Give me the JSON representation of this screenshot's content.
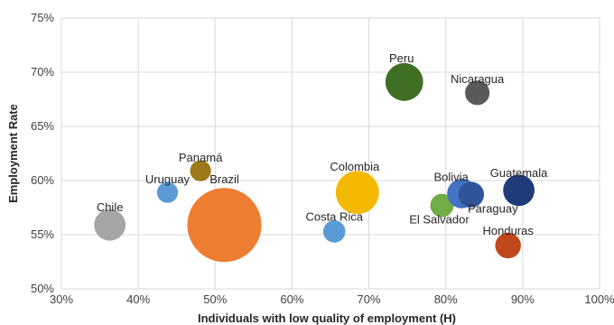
{
  "chart_data": {
    "type": "scatter",
    "title": "",
    "xlabel": "Individuals with low quality of employment (H)",
    "ylabel": "Employment Rate",
    "xlim": [
      30,
      100
    ],
    "ylim": [
      50,
      75
    ],
    "x_ticks": [
      "30%",
      "40%",
      "50%",
      "60%",
      "70%",
      "80%",
      "90%",
      "100%"
    ],
    "y_ticks": [
      "50%",
      "55%",
      "60%",
      "65%",
      "70%",
      "75%"
    ],
    "grid": true,
    "points": [
      {
        "label": "Chile",
        "x": 36.3,
        "y": 55.9,
        "size": 0.18,
        "color": "#a5a5a5"
      },
      {
        "label": "Uruguay",
        "x": 43.8,
        "y": 58.9,
        "size": 0.08,
        "color": "#5b9bd5"
      },
      {
        "label": "Panamá",
        "x": 48.1,
        "y": 60.9,
        "size": 0.08,
        "color": "#9c7a1a"
      },
      {
        "label": "Brazil",
        "x": 51.2,
        "y": 55.9,
        "size": 1.0,
        "color": "#ed7d31"
      },
      {
        "label": "Costa Rica",
        "x": 65.5,
        "y": 55.3,
        "size": 0.09,
        "color": "#5b9bd5"
      },
      {
        "label": "Colombia",
        "x": 68.5,
        "y": 58.9,
        "size": 0.34,
        "color": "#f5b800"
      },
      {
        "label": "Peru",
        "x": 74.6,
        "y": 69.1,
        "size": 0.26,
        "color": "#3f6f24"
      },
      {
        "label": "El Salvador",
        "x": 79.5,
        "y": 57.7,
        "size": 0.1,
        "color": "#70ad47"
      },
      {
        "label": "Bolivia",
        "x": 82.1,
        "y": 58.8,
        "size": 0.16,
        "color": "#4472c4"
      },
      {
        "label": "Paraguay",
        "x": 83.3,
        "y": 58.7,
        "size": 0.12,
        "color": "#2e5597"
      },
      {
        "label": "Nicaragua",
        "x": 84.1,
        "y": 68.1,
        "size": 0.11,
        "color": "#595959"
      },
      {
        "label": "Honduras",
        "x": 88.1,
        "y": 54.0,
        "size": 0.12,
        "color": "#c0471b"
      },
      {
        "label": "Guatemala",
        "x": 89.5,
        "y": 59.1,
        "size": 0.18,
        "color": "#1f3c78"
      }
    ]
  },
  "colors": {
    "grid": "#d9d9d9",
    "axis_text": "#404040"
  }
}
